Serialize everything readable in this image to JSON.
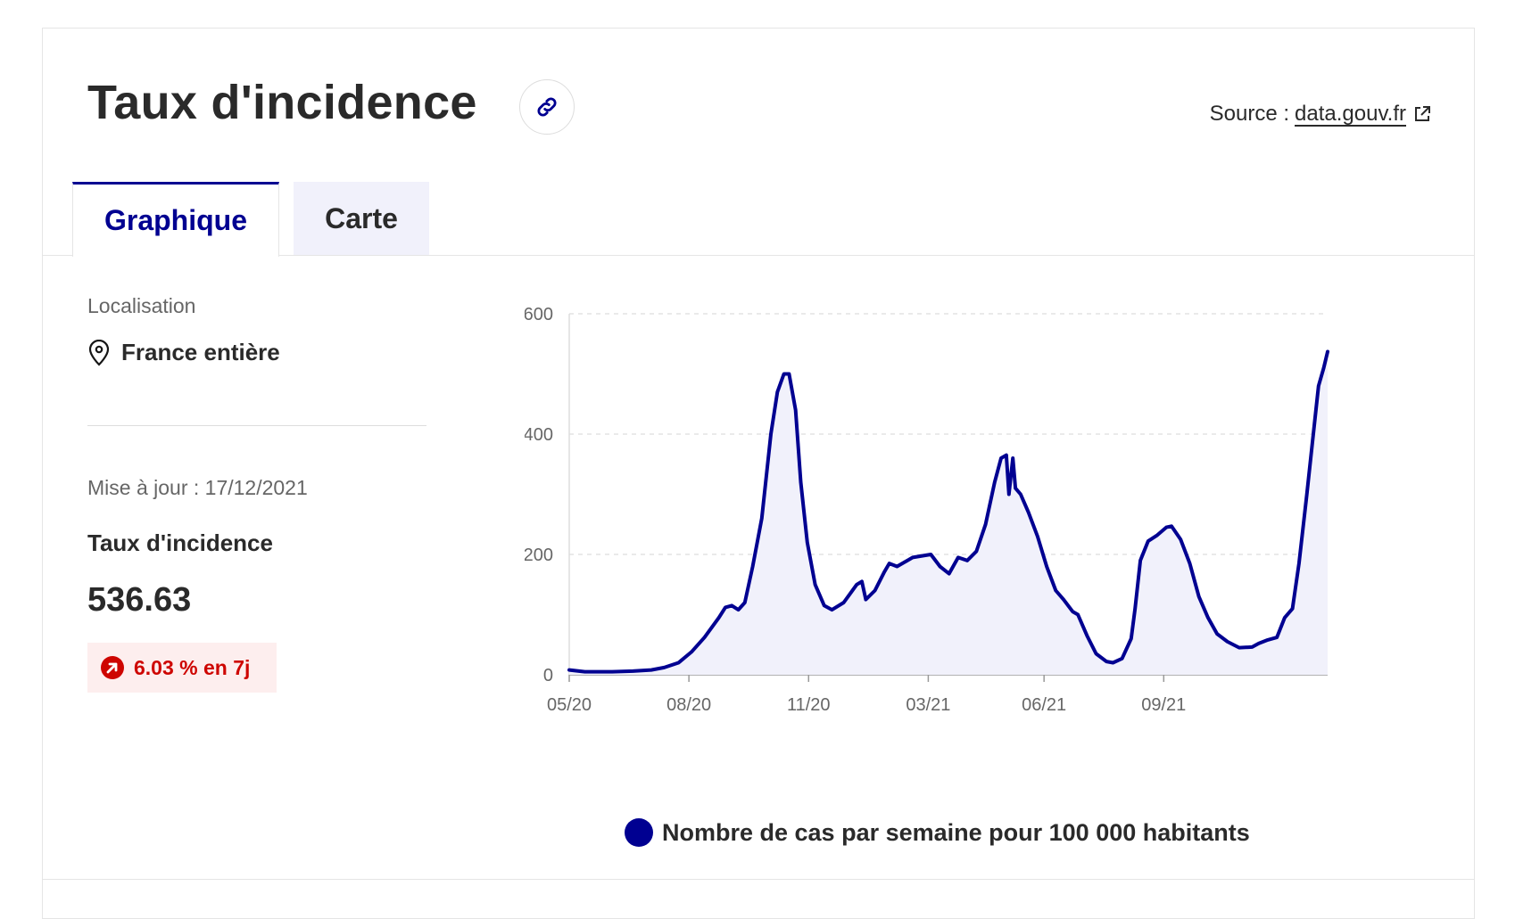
{
  "header": {
    "title": "Taux d'incidence",
    "source_prefix": "Source :",
    "source_link": "data.gouv.fr"
  },
  "tabs": [
    {
      "label": "Graphique",
      "active": true
    },
    {
      "label": "Carte",
      "active": false
    }
  ],
  "panel": {
    "location_label": "Localisation",
    "location_value": "France entière",
    "update_text": "Mise à jour : 17/12/2021",
    "metric_label": "Taux d'incidence",
    "metric_value": "536.63",
    "trend_text": "6.03 % en 7j"
  },
  "colors": {
    "accent": "#000091",
    "trend_up": "#ce0500",
    "trend_bg": "#fdeeee"
  },
  "chart_data": {
    "type": "area",
    "x_ticks": [
      "05/20",
      "08/20",
      "11/20",
      "03/21",
      "06/21",
      "09/21"
    ],
    "y_ticks": [
      "0",
      "200",
      "400",
      "600"
    ],
    "ylim": [
      0,
      600
    ],
    "grid": true,
    "legend": "bottom",
    "series": [
      {
        "name": "Nombre de cas par semaine pour 100 000 habitants",
        "color": "#000091",
        "points": [
          [
            "2020-05-13",
            8
          ],
          [
            "2020-05-25",
            5
          ],
          [
            "2020-06-15",
            5
          ],
          [
            "2020-07-01",
            6
          ],
          [
            "2020-07-15",
            8
          ],
          [
            "2020-07-25",
            12
          ],
          [
            "2020-08-05",
            20
          ],
          [
            "2020-08-15",
            38
          ],
          [
            "2020-08-25",
            62
          ],
          [
            "2020-09-05",
            95
          ],
          [
            "2020-09-10",
            112
          ],
          [
            "2020-09-15",
            115
          ],
          [
            "2020-09-20",
            108
          ],
          [
            "2020-09-25",
            120
          ],
          [
            "2020-10-01",
            180
          ],
          [
            "2020-10-08",
            260
          ],
          [
            "2020-10-15",
            400
          ],
          [
            "2020-10-20",
            470
          ],
          [
            "2020-10-25",
            500
          ],
          [
            "2020-10-29",
            500
          ],
          [
            "2020-11-03",
            440
          ],
          [
            "2020-11-07",
            320
          ],
          [
            "2020-11-12",
            220
          ],
          [
            "2020-11-18",
            150
          ],
          [
            "2020-11-25",
            115
          ],
          [
            "2020-12-01",
            108
          ],
          [
            "2020-12-10",
            120
          ],
          [
            "2020-12-15",
            135
          ],
          [
            "2020-12-20",
            150
          ],
          [
            "2020-12-24",
            155
          ],
          [
            "2020-12-27",
            125
          ],
          [
            "2021-01-03",
            140
          ],
          [
            "2021-01-10",
            170
          ],
          [
            "2021-01-14",
            185
          ],
          [
            "2021-01-20",
            180
          ],
          [
            "2021-02-01",
            195
          ],
          [
            "2021-02-15",
            200
          ],
          [
            "2021-02-22",
            180
          ],
          [
            "2021-03-01",
            168
          ],
          [
            "2021-03-08",
            195
          ],
          [
            "2021-03-15",
            190
          ],
          [
            "2021-03-22",
            205
          ],
          [
            "2021-03-29",
            250
          ],
          [
            "2021-04-05",
            320
          ],
          [
            "2021-04-10",
            360
          ],
          [
            "2021-04-14",
            365
          ],
          [
            "2021-04-16",
            300
          ],
          [
            "2021-04-19",
            360
          ],
          [
            "2021-04-21",
            310
          ],
          [
            "2021-04-25",
            300
          ],
          [
            "2021-05-01",
            270
          ],
          [
            "2021-05-08",
            230
          ],
          [
            "2021-05-15",
            180
          ],
          [
            "2021-05-22",
            140
          ],
          [
            "2021-05-28",
            125
          ],
          [
            "2021-06-04",
            105
          ],
          [
            "2021-06-08",
            100
          ],
          [
            "2021-06-15",
            65
          ],
          [
            "2021-06-22",
            35
          ],
          [
            "2021-06-30",
            22
          ],
          [
            "2021-07-05",
            20
          ],
          [
            "2021-07-12",
            27
          ],
          [
            "2021-07-19",
            60
          ],
          [
            "2021-07-22",
            110
          ],
          [
            "2021-07-26",
            190
          ],
          [
            "2021-08-01",
            222
          ],
          [
            "2021-08-08",
            232
          ],
          [
            "2021-08-15",
            245
          ],
          [
            "2021-08-19",
            247
          ],
          [
            "2021-08-26",
            225
          ],
          [
            "2021-09-02",
            185
          ],
          [
            "2021-09-09",
            130
          ],
          [
            "2021-09-16",
            95
          ],
          [
            "2021-09-23",
            68
          ],
          [
            "2021-10-01",
            55
          ],
          [
            "2021-10-10",
            45
          ],
          [
            "2021-10-20",
            46
          ],
          [
            "2021-10-25",
            52
          ],
          [
            "2021-11-01",
            58
          ],
          [
            "2021-11-08",
            62
          ],
          [
            "2021-11-14",
            95
          ],
          [
            "2021-11-20",
            110
          ],
          [
            "2021-11-25",
            185
          ],
          [
            "2021-12-01",
            300
          ],
          [
            "2021-12-05",
            380
          ],
          [
            "2021-12-10",
            480
          ],
          [
            "2021-12-14",
            510
          ],
          [
            "2021-12-17",
            537
          ]
        ]
      }
    ]
  }
}
